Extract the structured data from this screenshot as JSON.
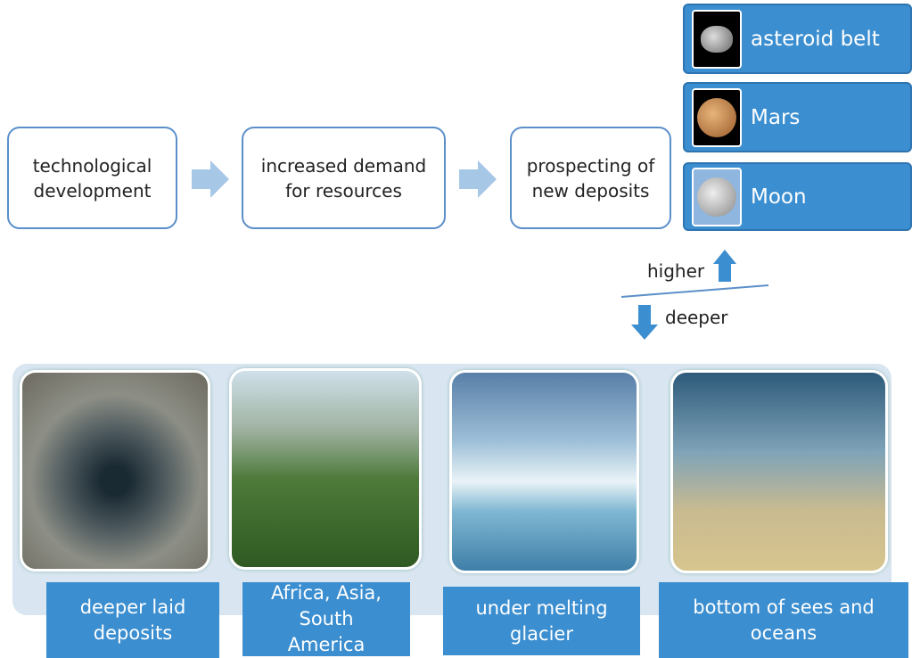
{
  "flow": [
    {
      "label": "technological development"
    },
    {
      "label": "increased demand for resources"
    },
    {
      "label": "prospecting of new deposits"
    }
  ],
  "destinations": [
    {
      "label": "asteroid belt"
    },
    {
      "label": "Mars"
    },
    {
      "label": "Moon"
    }
  ],
  "directions": {
    "higher": "higher",
    "deeper": "deeper"
  },
  "locations": [
    {
      "label": "deeper laid deposits"
    },
    {
      "label": "Africa, Asia, South America"
    },
    {
      "label": "under melting glacier"
    },
    {
      "label": "bottom of sees and oceans"
    }
  ]
}
